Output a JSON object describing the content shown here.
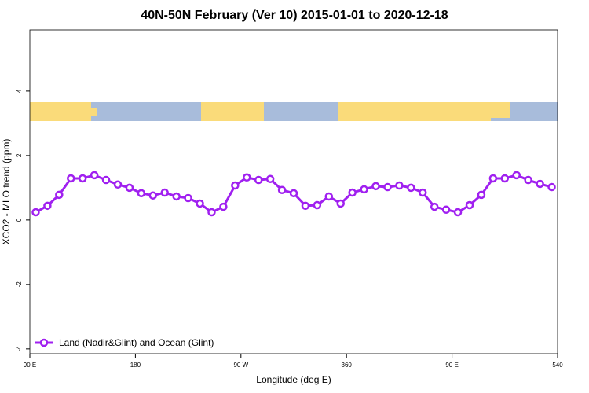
{
  "chart_data": {
    "type": "line",
    "title": "40N-50N February (Ver 10)   2015-01-01 to 2020-12-18",
    "x_label": "Longitude (deg E)",
    "y_label": "XCO2 - MLO trend (ppm)",
    "x": [
      95,
      105,
      115,
      125,
      135,
      145,
      155,
      165,
      175,
      185,
      195,
      205,
      215,
      225,
      235,
      245,
      255,
      265,
      275,
      285,
      295,
      305,
      315,
      325,
      335,
      345,
      355,
      365,
      375,
      385,
      395,
      405,
      415,
      425,
      435,
      445,
      455,
      465,
      475,
      485,
      495,
      505,
      515,
      525,
      535
    ],
    "series": [
      {
        "name": "Land (Nadir&Glint) and Ocean (Glint)",
        "color": "#a020f0",
        "values": [
          0.24,
          0.44,
          0.78,
          1.29,
          1.29,
          1.39,
          1.24,
          1.1,
          1.0,
          0.83,
          0.76,
          0.85,
          0.73,
          0.68,
          0.51,
          0.24,
          0.41,
          1.07,
          1.32,
          1.24,
          1.27,
          0.93,
          0.83,
          0.44,
          0.46,
          0.73,
          0.51,
          0.85,
          0.95,
          1.05,
          1.02,
          1.07,
          1.0,
          0.85,
          0.41,
          0.32,
          0.24,
          0.46,
          0.78,
          1.29,
          1.29,
          1.39,
          1.24,
          1.12,
          1.02
        ]
      }
    ],
    "xlim": [
      90,
      540
    ],
    "xticks": [
      {
        "value": 90,
        "label": "90 E"
      },
      180,
      {
        "value": 270,
        "label": "90 W"
      },
      360,
      {
        "value": 450,
        "label": "90 E"
      },
      540
    ],
    "ylim": [
      -4.15,
      5.9
    ],
    "yticks": [
      -4,
      -2,
      0,
      2,
      4
    ]
  }
}
